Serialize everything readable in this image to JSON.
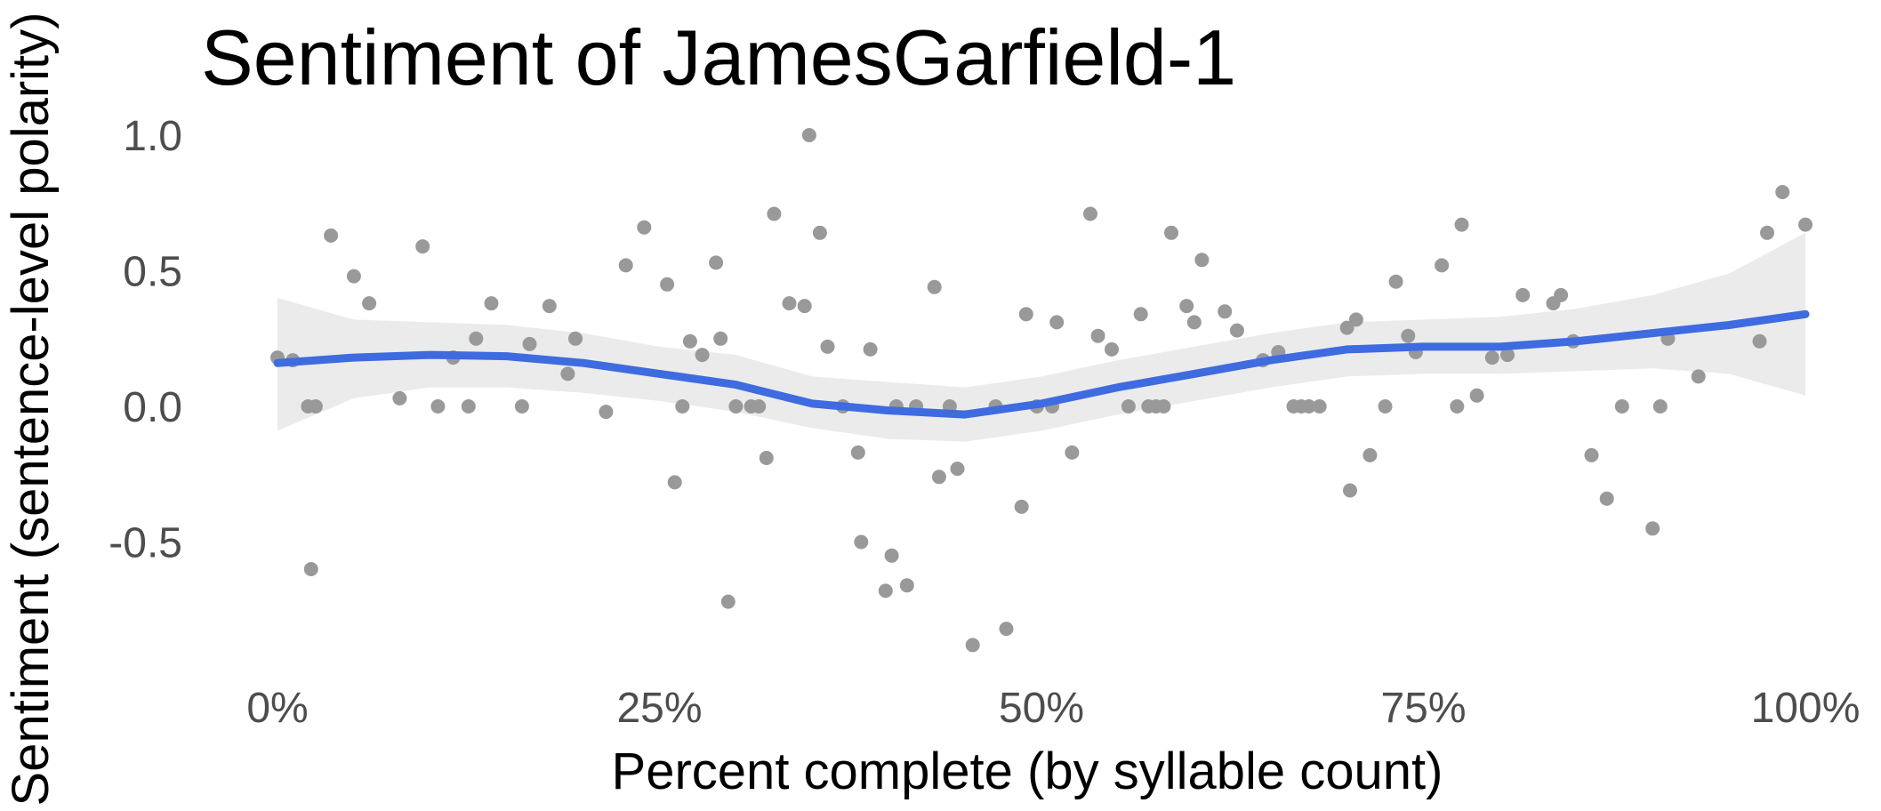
{
  "chart_data": {
    "type": "scatter",
    "title": "Sentiment of JamesGarfield-1",
    "xlabel": "Percent complete (by syllable count)",
    "ylabel": "Sentiment (sentence-level polarity)",
    "xlim": [
      0,
      1
    ],
    "ylim": [
      -0.9,
      1.0
    ],
    "x_ticks": [
      {
        "value": 0.0,
        "label": "0%"
      },
      {
        "value": 0.25,
        "label": "25%"
      },
      {
        "value": 0.5,
        "label": "50%"
      },
      {
        "value": 0.75,
        "label": "75%"
      },
      {
        "value": 1.0,
        "label": "100%"
      }
    ],
    "y_ticks": [
      {
        "value": -0.5,
        "label": "-0.5"
      },
      {
        "value": 0.0,
        "label": "0.0"
      },
      {
        "value": 0.5,
        "label": "0.5"
      },
      {
        "value": 1.0,
        "label": "1.0"
      }
    ],
    "grid": false,
    "legend": "none",
    "colors": {
      "points": "#999999",
      "smooth": "#3f6be0",
      "band": "#ebebeb"
    },
    "points": [
      [
        0.0,
        0.18
      ],
      [
        0.01,
        0.17
      ],
      [
        0.02,
        0.0
      ],
      [
        0.022,
        -0.6
      ],
      [
        0.025,
        0.0
      ],
      [
        0.035,
        0.63
      ],
      [
        0.05,
        0.48
      ],
      [
        0.06,
        0.38
      ],
      [
        0.08,
        0.03
      ],
      [
        0.095,
        0.59
      ],
      [
        0.105,
        0.0
      ],
      [
        0.115,
        0.18
      ],
      [
        0.125,
        0.0
      ],
      [
        0.13,
        0.25
      ],
      [
        0.14,
        0.38
      ],
      [
        0.16,
        0.0
      ],
      [
        0.165,
        0.23
      ],
      [
        0.178,
        0.37
      ],
      [
        0.19,
        0.12
      ],
      [
        0.195,
        0.25
      ],
      [
        0.215,
        -0.02
      ],
      [
        0.228,
        0.52
      ],
      [
        0.24,
        0.66
      ],
      [
        0.255,
        0.45
      ],
      [
        0.26,
        -0.28
      ],
      [
        0.265,
        0.0
      ],
      [
        0.27,
        0.24
      ],
      [
        0.278,
        0.19
      ],
      [
        0.287,
        0.53
      ],
      [
        0.29,
        0.25
      ],
      [
        0.295,
        -0.72
      ],
      [
        0.3,
        0.0
      ],
      [
        0.31,
        0.0
      ],
      [
        0.315,
        0.0
      ],
      [
        0.32,
        -0.19
      ],
      [
        0.325,
        0.71
      ],
      [
        0.335,
        0.38
      ],
      [
        0.345,
        0.37
      ],
      [
        0.348,
        1.0
      ],
      [
        0.355,
        0.64
      ],
      [
        0.36,
        0.22
      ],
      [
        0.37,
        0.0
      ],
      [
        0.38,
        -0.17
      ],
      [
        0.382,
        -0.5
      ],
      [
        0.388,
        0.21
      ],
      [
        0.398,
        -0.68
      ],
      [
        0.402,
        -0.55
      ],
      [
        0.405,
        0.0
      ],
      [
        0.412,
        -0.66
      ],
      [
        0.418,
        0.0
      ],
      [
        0.43,
        0.44
      ],
      [
        0.433,
        -0.26
      ],
      [
        0.44,
        0.0
      ],
      [
        0.445,
        -0.23
      ],
      [
        0.455,
        -0.88
      ],
      [
        0.47,
        0.0
      ],
      [
        0.477,
        -0.82
      ],
      [
        0.487,
        -0.37
      ],
      [
        0.49,
        0.34
      ],
      [
        0.497,
        0.0
      ],
      [
        0.507,
        0.0
      ],
      [
        0.51,
        0.31
      ],
      [
        0.52,
        -0.17
      ],
      [
        0.532,
        0.71
      ],
      [
        0.537,
        0.26
      ],
      [
        0.546,
        0.21
      ],
      [
        0.557,
        0.0
      ],
      [
        0.565,
        0.34
      ],
      [
        0.57,
        0.0
      ],
      [
        0.575,
        0.0
      ],
      [
        0.58,
        0.0
      ],
      [
        0.585,
        0.64
      ],
      [
        0.595,
        0.37
      ],
      [
        0.6,
        0.31
      ],
      [
        0.605,
        0.54
      ],
      [
        0.62,
        0.35
      ],
      [
        0.628,
        0.28
      ],
      [
        0.645,
        0.17
      ],
      [
        0.655,
        0.2
      ],
      [
        0.665,
        0.0
      ],
      [
        0.67,
        0.0
      ],
      [
        0.675,
        0.0
      ],
      [
        0.682,
        0.0
      ],
      [
        0.7,
        0.29
      ],
      [
        0.702,
        -0.31
      ],
      [
        0.706,
        0.32
      ],
      [
        0.715,
        -0.18
      ],
      [
        0.725,
        0.0
      ],
      [
        0.732,
        0.46
      ],
      [
        0.74,
        0.26
      ],
      [
        0.745,
        0.2
      ],
      [
        0.762,
        0.52
      ],
      [
        0.772,
        0.0
      ],
      [
        0.775,
        0.67
      ],
      [
        0.785,
        0.04
      ],
      [
        0.795,
        0.18
      ],
      [
        0.805,
        0.19
      ],
      [
        0.815,
        0.41
      ],
      [
        0.835,
        0.38
      ],
      [
        0.84,
        0.41
      ],
      [
        0.848,
        0.24
      ],
      [
        0.86,
        -0.18
      ],
      [
        0.87,
        -0.34
      ],
      [
        0.88,
        0.0
      ],
      [
        0.9,
        -0.45
      ],
      [
        0.905,
        0.0
      ],
      [
        0.91,
        0.25
      ],
      [
        0.93,
        0.11
      ],
      [
        0.97,
        0.24
      ],
      [
        0.975,
        0.64
      ],
      [
        0.985,
        0.79
      ],
      [
        1.0,
        0.67
      ]
    ],
    "smooth": [
      [
        0.0,
        0.16
      ],
      [
        0.05,
        0.18
      ],
      [
        0.1,
        0.19
      ],
      [
        0.15,
        0.185
      ],
      [
        0.2,
        0.16
      ],
      [
        0.25,
        0.12
      ],
      [
        0.3,
        0.08
      ],
      [
        0.35,
        0.01
      ],
      [
        0.4,
        -0.015
      ],
      [
        0.45,
        -0.03
      ],
      [
        0.5,
        0.01
      ],
      [
        0.55,
        0.07
      ],
      [
        0.6,
        0.12
      ],
      [
        0.65,
        0.17
      ],
      [
        0.7,
        0.21
      ],
      [
        0.75,
        0.22
      ],
      [
        0.8,
        0.22
      ],
      [
        0.85,
        0.24
      ],
      [
        0.9,
        0.27
      ],
      [
        0.95,
        0.3
      ],
      [
        1.0,
        0.34
      ]
    ],
    "band_lower": [
      [
        0.0,
        -0.09
      ],
      [
        0.05,
        0.03
      ],
      [
        0.1,
        0.07
      ],
      [
        0.15,
        0.07
      ],
      [
        0.2,
        0.05
      ],
      [
        0.25,
        0.02
      ],
      [
        0.3,
        -0.02
      ],
      [
        0.35,
        -0.08
      ],
      [
        0.4,
        -0.12
      ],
      [
        0.45,
        -0.13
      ],
      [
        0.5,
        -0.09
      ],
      [
        0.55,
        -0.03
      ],
      [
        0.6,
        0.02
      ],
      [
        0.65,
        0.07
      ],
      [
        0.7,
        0.11
      ],
      [
        0.75,
        0.12
      ],
      [
        0.8,
        0.12
      ],
      [
        0.85,
        0.13
      ],
      [
        0.9,
        0.14
      ],
      [
        0.95,
        0.12
      ],
      [
        1.0,
        0.04
      ]
    ],
    "band_upper": [
      [
        0.0,
        0.4
      ],
      [
        0.05,
        0.32
      ],
      [
        0.1,
        0.31
      ],
      [
        0.15,
        0.3
      ],
      [
        0.2,
        0.27
      ],
      [
        0.25,
        0.22
      ],
      [
        0.3,
        0.19
      ],
      [
        0.35,
        0.11
      ],
      [
        0.4,
        0.09
      ],
      [
        0.45,
        0.07
      ],
      [
        0.5,
        0.11
      ],
      [
        0.55,
        0.17
      ],
      [
        0.6,
        0.22
      ],
      [
        0.65,
        0.27
      ],
      [
        0.7,
        0.31
      ],
      [
        0.75,
        0.32
      ],
      [
        0.8,
        0.33
      ],
      [
        0.85,
        0.36
      ],
      [
        0.9,
        0.41
      ],
      [
        0.95,
        0.49
      ],
      [
        1.0,
        0.64
      ]
    ]
  }
}
